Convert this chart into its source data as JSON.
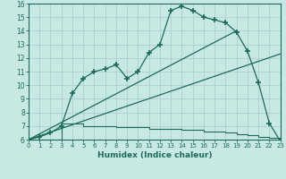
{
  "bg_color": "#c8e8e4",
  "grid_color": "#a8ccc8",
  "line_color": "#1a6b5a",
  "xlim": [
    0,
    23
  ],
  "ylim": [
    6,
    16
  ],
  "xticks": [
    0,
    1,
    2,
    3,
    4,
    5,
    6,
    7,
    8,
    9,
    10,
    11,
    12,
    13,
    14,
    15,
    16,
    17,
    18,
    19,
    20,
    21,
    22,
    23
  ],
  "yticks": [
    6,
    7,
    8,
    9,
    10,
    11,
    12,
    13,
    14,
    15,
    16
  ],
  "xlabel": "Humidex (Indice chaleur)",
  "line1_x": [
    0,
    1,
    2,
    3,
    4,
    5,
    6,
    7,
    8,
    9,
    10,
    11,
    12,
    13,
    14,
    15,
    16,
    17,
    18,
    19,
    20,
    21,
    22,
    23
  ],
  "line1_y": [
    6.0,
    6.2,
    6.5,
    7.0,
    9.4,
    10.5,
    11.0,
    11.2,
    11.5,
    10.5,
    11.0,
    12.4,
    13.0,
    15.5,
    15.8,
    15.5,
    15.0,
    14.8,
    14.6,
    13.9,
    12.5,
    10.2,
    7.2,
    5.9
  ],
  "line2_x": [
    0,
    23
  ],
  "line2_y": [
    6.0,
    12.3
  ],
  "line3_x": [
    0,
    19
  ],
  "line3_y": [
    6.0,
    14.0
  ],
  "line4_x": [
    0,
    1,
    2,
    3,
    4,
    5,
    6,
    7,
    8,
    9,
    10,
    11,
    12,
    13,
    14,
    15,
    16,
    17,
    18,
    19,
    20,
    21,
    22,
    23
  ],
  "line4_y": [
    6.0,
    6.0,
    6.0,
    7.2,
    7.2,
    7.0,
    7.0,
    7.0,
    6.9,
    6.9,
    6.9,
    6.8,
    6.8,
    6.8,
    6.7,
    6.7,
    6.6,
    6.6,
    6.5,
    6.4,
    6.3,
    6.2,
    6.1,
    5.9
  ]
}
